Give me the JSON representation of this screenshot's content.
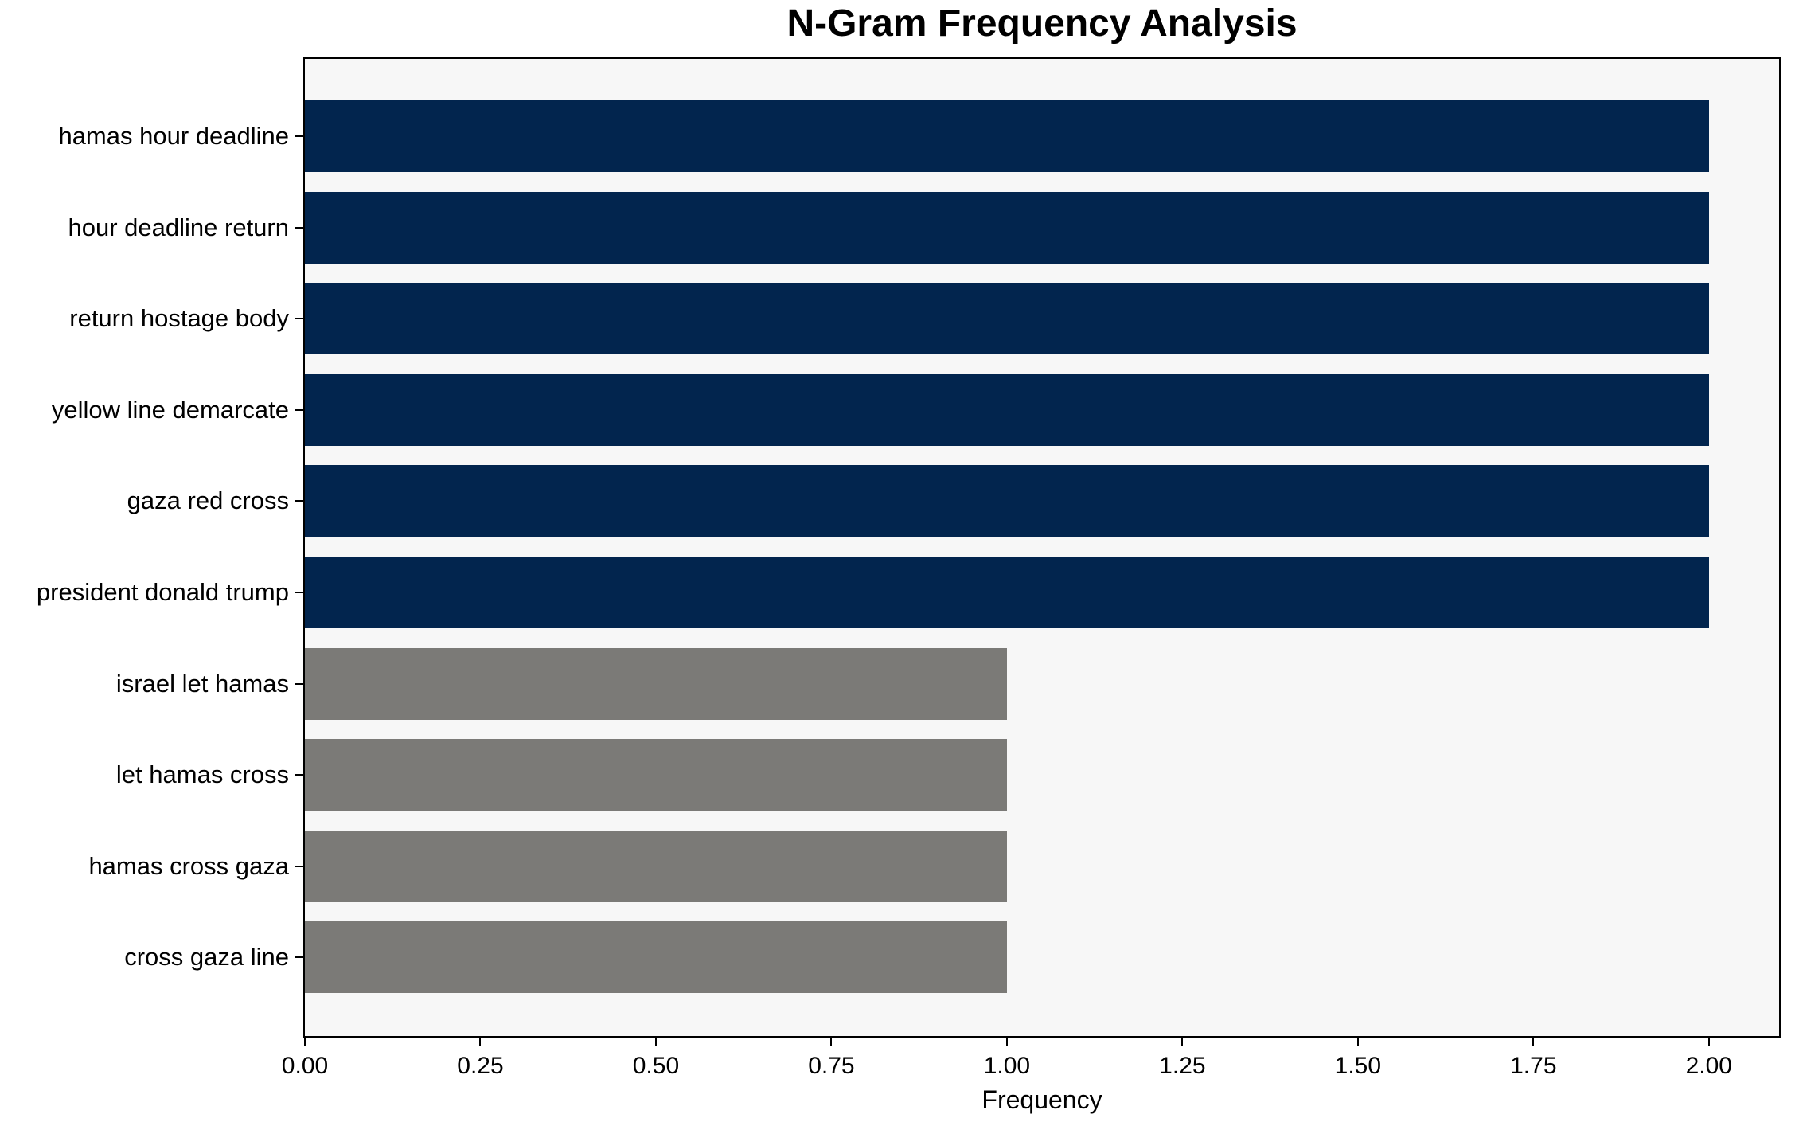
{
  "chart_data": {
    "type": "bar",
    "orientation": "horizontal",
    "title": "N-Gram Frequency Analysis",
    "xlabel": "Frequency",
    "ylabel": "",
    "categories": [
      "hamas hour deadline",
      "hour deadline return",
      "return hostage body",
      "yellow line demarcate",
      "gaza red cross",
      "president donald trump",
      "israel let hamas",
      "let hamas cross",
      "hamas cross gaza",
      "cross gaza line"
    ],
    "values": [
      2,
      2,
      2,
      2,
      2,
      2,
      1,
      1,
      1,
      1
    ],
    "bar_colors": [
      "#02254e",
      "#02254e",
      "#02254e",
      "#02254e",
      "#02254e",
      "#02254e",
      "#7b7a77",
      "#7b7a77",
      "#7b7a77",
      "#7b7a77"
    ],
    "color_high_frequency": "#02254e",
    "color_low_frequency": "#7b7a77",
    "xlim": [
      0,
      2.1
    ],
    "xticks": {
      "values": [
        0,
        0.25,
        0.5,
        0.75,
        1,
        1.25,
        1.5,
        1.75,
        2
      ],
      "labels": [
        "0.00",
        "0.25",
        "0.50",
        "0.75",
        "1.00",
        "1.25",
        "1.50",
        "1.75",
        "2.00"
      ]
    },
    "plot_background": "#f7f7f7",
    "figure_background": "#ffffff",
    "axis_color": "#000000",
    "text_color": "#000000",
    "grid": false,
    "legend_position": "none"
  }
}
